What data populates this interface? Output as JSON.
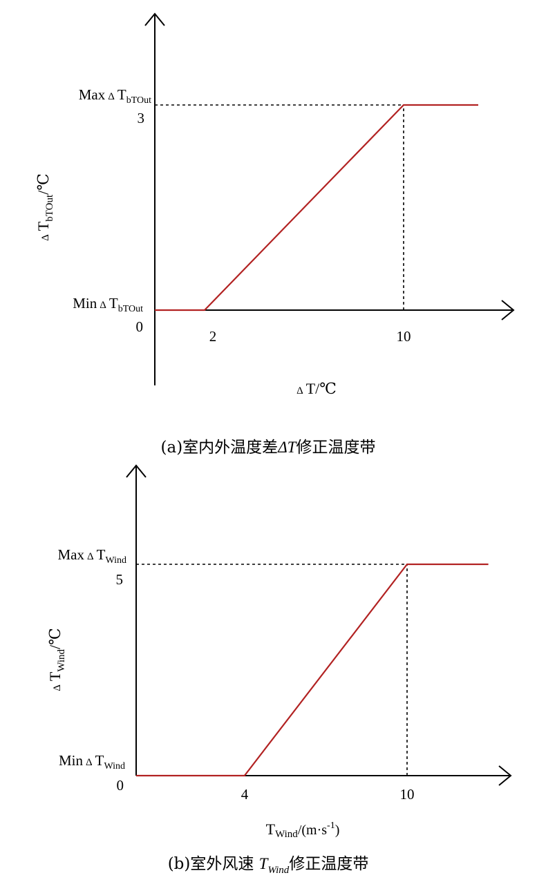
{
  "chart_data": [
    {
      "type": "line",
      "caption": {
        "prefix": "(a)室内外温度差",
        "symbol": "ΔT",
        "suffix": "修正温度带"
      },
      "x_label": {
        "delta": "Δ",
        "main": "T/℃"
      },
      "y_label": {
        "delta": "Δ",
        "main": "T",
        "sub": "bTOut",
        "unit": "/℃"
      },
      "max_label": {
        "word": "Max",
        "delta": "Δ",
        "main": "T",
        "sub": "bTOut"
      },
      "min_label": {
        "word": "Min",
        "delta": "Δ",
        "main": "T",
        "sub": "bTOut"
      },
      "origin_label": "0",
      "x_ticks": [
        "2",
        "10"
      ],
      "y_ticks": [
        "3"
      ],
      "series": [
        {
          "x": [
            0,
            2,
            10,
            13
          ],
          "y": [
            0,
            0,
            3,
            3
          ],
          "color": "#b22222"
        }
      ],
      "reference_lines": [
        {
          "from": [
            0,
            3
          ],
          "to": [
            10,
            3
          ]
        },
        {
          "from": [
            10,
            0
          ],
          "to": [
            10,
            3
          ]
        }
      ]
    },
    {
      "type": "line",
      "caption": {
        "prefix": "(b)室外风速 ",
        "symbol": "T",
        "sub": "Wind",
        "suffix": "修正温度带"
      },
      "x_label": {
        "main": "T",
        "sub": "Wind",
        "unit": "/(m·s",
        "sup": "-1",
        "close": ")"
      },
      "y_label": {
        "delta": "Δ",
        "main": "T",
        "sub": "Wind",
        "unit": "/℃"
      },
      "max_label": {
        "word": "Max",
        "delta": "Δ",
        "main": "T",
        "sub": "Wind"
      },
      "min_label": {
        "word": "Min",
        "delta": "Δ",
        "main": "T",
        "sub": "Wind"
      },
      "origin_label": "0",
      "x_ticks": [
        "4",
        "10"
      ],
      "y_ticks": [
        "5"
      ],
      "series": [
        {
          "x": [
            0,
            4,
            10,
            13
          ],
          "y": [
            0,
            0,
            5,
            5
          ],
          "color": "#b22222"
        }
      ],
      "reference_lines": [
        {
          "from": [
            0,
            5
          ],
          "to": [
            10,
            5
          ]
        },
        {
          "from": [
            10,
            0
          ],
          "to": [
            10,
            5
          ]
        }
      ]
    }
  ]
}
